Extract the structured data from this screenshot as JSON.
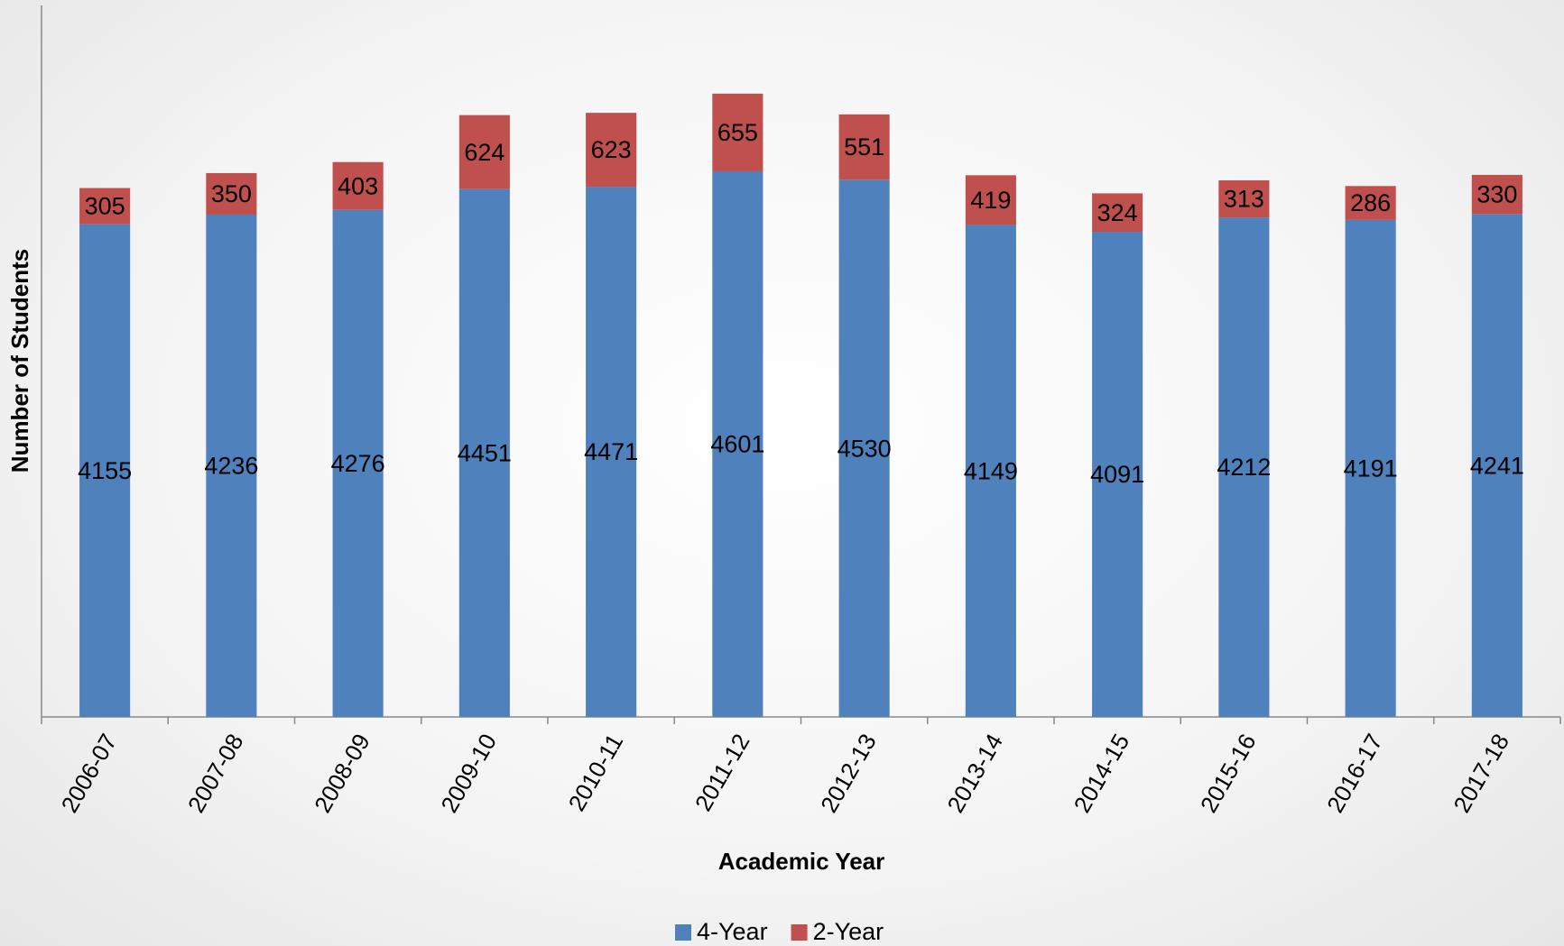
{
  "chart_data": {
    "type": "bar",
    "stacked": true,
    "x_label": "Academic Year",
    "y_label": "Number of Students",
    "categories": [
      "2006-07",
      "2007-08",
      "2008-09",
      "2009-10",
      "2010-11",
      "2011-12",
      "2012-13",
      "2013-14",
      "2014-15",
      "2015-16",
      "2016-17",
      "2017-18"
    ],
    "series": [
      {
        "name": "4-Year",
        "color": "#4f81bd",
        "values": [
          4155,
          4236,
          4276,
          4451,
          4471,
          4601,
          4530,
          4149,
          4091,
          4212,
          4191,
          4241
        ]
      },
      {
        "name": "2-Year",
        "color": "#c0504d",
        "values": [
          305,
          350,
          403,
          624,
          623,
          655,
          551,
          419,
          324,
          313,
          286,
          330
        ]
      }
    ],
    "ylim": [
      0,
      6000
    ],
    "legend": "bottom"
  }
}
